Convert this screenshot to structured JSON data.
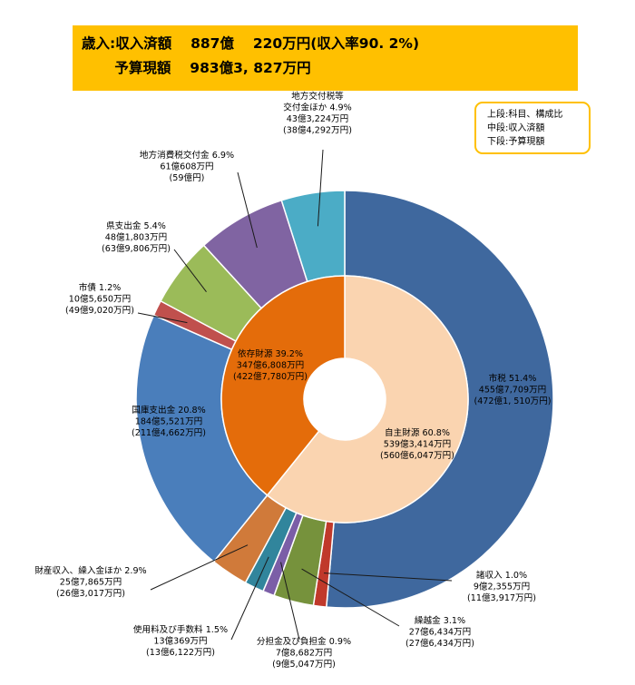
{
  "header": {
    "line1": "歳入:収入済額　 887億　 220万円(収入率90. 2%)",
    "line2": "　　 予算現額 　983億3, 827万円",
    "color": "#FFC000"
  },
  "legend": {
    "line1": "上段:科目、構成比",
    "line2": "中段:収入済額",
    "line3": "下段:予算現額"
  },
  "chart_data": {
    "type": "pie",
    "subtype": "nested-donut",
    "start": "12 o'clock",
    "direction": "clockwise",
    "inner": [
      {
        "name": "自主財源",
        "value": 60.8,
        "color": "#FAD4B0",
        "labels": [
          "自主財源 60.8%",
          "539億3,414万円",
          "(560億6,047万円)"
        ]
      },
      {
        "name": "依存財源",
        "value": 39.2,
        "color": "#E46C0A",
        "labels": [
          "依存財源 39.2%",
          "347億6,808万円",
          "(422億7,780万円)"
        ]
      }
    ],
    "outer": [
      {
        "name": "市税",
        "value": 51.4,
        "color": "#3F689E",
        "labels": [
          "市税 51.4%",
          "455億7,709万円",
          "(472億1, 510万円)"
        ]
      },
      {
        "name": "諸収入",
        "value": 1.0,
        "color": "#C0392B",
        "labels": [
          "諸収入 1.0%",
          "9億2,355万円",
          "(11億3,917万円)"
        ]
      },
      {
        "name": "繰越金",
        "value": 3.1,
        "color": "#76923C",
        "labels": [
          "繰越金 3.1%",
          "27億6,434万円",
          "(27億6,434万円)"
        ]
      },
      {
        "name": "分担金及び負担金",
        "value": 0.9,
        "color": "#7B5EA7",
        "labels": [
          "分担金及び負担金 0.9%",
          "7億8,682万円",
          "(9億5,047万円)"
        ]
      },
      {
        "name": "使用料及び手数料",
        "value": 1.5,
        "color": "#31859C",
        "labels": [
          "使用料及び手数料 1.5%",
          "13億369万円",
          "(13億6,122万円)"
        ]
      },
      {
        "name": "財産収入、繰入金ほか",
        "value": 2.9,
        "color": "#D07A3A",
        "labels": [
          "財産収入、繰入金ほか 2.9%",
          "25億7,865万円",
          "(26億3,017万円)"
        ]
      },
      {
        "name": "国庫支出金",
        "value": 20.8,
        "color": "#4A7EBB",
        "labels": [
          "国庫支出金 20.8%",
          "184億5,521万円",
          "(211億4,662万円)"
        ]
      },
      {
        "name": "市債",
        "value": 1.2,
        "color": "#C0504D",
        "labels": [
          "市債 1.2%",
          "10億5,650万円",
          "(49億9,020万円)"
        ]
      },
      {
        "name": "県支出金",
        "value": 5.4,
        "color": "#9BBB59",
        "labels": [
          "県支出金 5.4%",
          "48億1,803万円",
          "(63億9,806万円)"
        ]
      },
      {
        "name": "地方消費税交付金",
        "value": 6.9,
        "color": "#8064A2",
        "labels": [
          "地方消費税交付金 6.9%",
          "61億608万円",
          "(59億円)"
        ]
      },
      {
        "name": "地方交付税等交付金ほか",
        "value": 4.9,
        "color": "#4BACC6",
        "labels": [
          "地方交付税等",
          "交付金ほか 4.9%",
          "43億3,224万円",
          "(38億4,292万円)"
        ]
      }
    ]
  }
}
